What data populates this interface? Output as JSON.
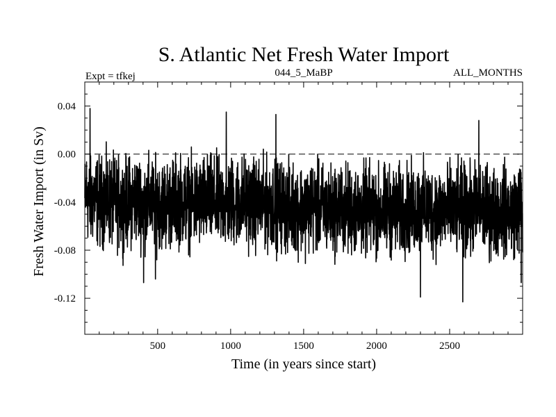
{
  "chart_data": {
    "type": "line",
    "title": "S. Atlantic Net Fresh Water Import",
    "subtitle_left": "Expt = tfkej",
    "subtitle_center": "044_5_MaBP",
    "subtitle_right": "ALL_MONTHS",
    "xlabel": "Time (in years since start)",
    "ylabel": "Fresh Water Import (in Sv)",
    "xlim": [
      1,
      3000
    ],
    "ylim": [
      -0.15,
      0.06
    ],
    "xticks": [
      500,
      1000,
      1500,
      2000,
      2500
    ],
    "xtick_labels": [
      "500",
      "1000",
      "1500",
      "2000",
      "2500"
    ],
    "yticks": [
      0.04,
      0.0,
      -0.04,
      -0.08,
      -0.12
    ],
    "ytick_labels": [
      "0.04",
      "0.00",
      "-0.04",
      "-0.08",
      "-0.12"
    ],
    "reference_line": {
      "y": 0.0,
      "style": "dashed"
    },
    "grid": false,
    "series": [
      {
        "color": "#000000",
        "approx_description": "annual values 1-3000, mean about -0.04 Sv, range about -0.123 to 0.038",
        "x": [
          1,
          10,
          37,
          60,
          100,
          150,
          200,
          250,
          300,
          350,
          400,
          404,
          450,
          485,
          500,
          550,
          600,
          650,
          700,
          750,
          800,
          850,
          900,
          950,
          970,
          1000,
          1050,
          1100,
          1150,
          1200,
          1250,
          1300,
          1310,
          1350,
          1400,
          1450,
          1500,
          1550,
          1600,
          1650,
          1700,
          1750,
          1800,
          1850,
          1900,
          1950,
          2000,
          2050,
          2100,
          2150,
          2200,
          2250,
          2300,
          2350,
          2400,
          2450,
          2500,
          2550,
          2590,
          2600,
          2650,
          2700,
          2750,
          2800,
          2850,
          2900,
          2950,
          2990,
          3000
        ],
        "y": [
          -0.04,
          -0.03,
          0.038,
          -0.035,
          -0.04,
          -0.038,
          -0.04,
          -0.042,
          -0.04,
          -0.038,
          -0.04,
          -0.107,
          -0.038,
          -0.104,
          -0.04,
          -0.042,
          -0.04,
          -0.038,
          -0.04,
          -0.041,
          -0.04,
          -0.039,
          -0.04,
          -0.04,
          0.035,
          -0.04,
          -0.04,
          -0.038,
          -0.042,
          -0.041,
          -0.042,
          -0.04,
          0.033,
          -0.043,
          -0.045,
          -0.044,
          -0.046,
          -0.044,
          -0.045,
          -0.046,
          -0.047,
          -0.045,
          -0.047,
          -0.046,
          -0.047,
          -0.046,
          -0.048,
          -0.047,
          -0.047,
          -0.048,
          -0.046,
          -0.047,
          -0.119,
          -0.046,
          -0.048,
          -0.046,
          -0.046,
          -0.048,
          -0.123,
          -0.047,
          -0.048,
          0.028,
          -0.047,
          -0.048,
          -0.046,
          -0.048,
          -0.047,
          -0.107,
          -0.048
        ]
      }
    ]
  }
}
